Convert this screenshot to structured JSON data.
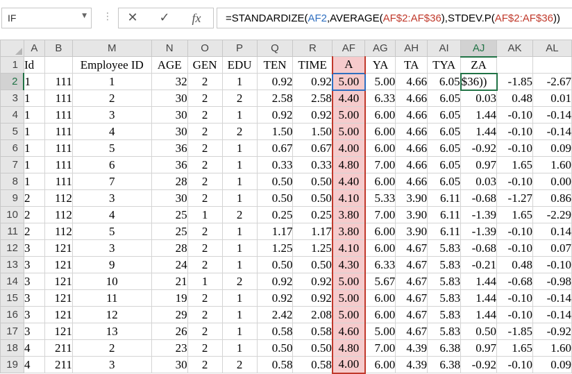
{
  "name_box": {
    "value": "IF"
  },
  "formula_bar": {
    "prefix": "=STANDARDIZE(",
    "arg1": "AF2",
    "mid1": ",AVERAGE(",
    "arg2": "AF$2:AF$36",
    "mid2": "),STDEV.P(",
    "arg3": "AF$2:AF$36",
    "suffix": "))",
    "cancel_icon": "close-icon",
    "enter_icon": "check-icon",
    "fx_label": "fx"
  },
  "columns": [
    "A",
    "B",
    "M",
    "N",
    "O",
    "P",
    "Q",
    "R",
    "AF",
    "AG",
    "AH",
    "AI",
    "AJ",
    "AK",
    "AL"
  ],
  "active_column": "AJ",
  "active_row": "2",
  "header_row": {
    "row_number": "1",
    "cells": [
      "Id",
      "",
      "Employee ID",
      "AGE",
      "GEN",
      "EDU",
      "TEN",
      "TIME",
      "A",
      "YA",
      "TA",
      "TYA",
      "ZA",
      "",
      ""
    ]
  },
  "rows": [
    {
      "n": "2",
      "cells": [
        "1",
        "111",
        "1",
        "32",
        "2",
        "1",
        "0.92",
        "0.92",
        "5.00",
        "5.00",
        "4.66",
        "6.05",
        "$36))",
        "-1.85",
        "-2.67"
      ]
    },
    {
      "n": "3",
      "cells": [
        "1",
        "111",
        "2",
        "30",
        "2",
        "2",
        "2.58",
        "2.58",
        "4.40",
        "6.33",
        "4.66",
        "6.05",
        "0.03",
        "0.48",
        "0.01"
      ]
    },
    {
      "n": "4",
      "cells": [
        "1",
        "111",
        "3",
        "30",
        "2",
        "1",
        "0.92",
        "0.92",
        "5.00",
        "6.00",
        "4.66",
        "6.05",
        "1.44",
        "-0.10",
        "-0.14"
      ]
    },
    {
      "n": "5",
      "cells": [
        "1",
        "111",
        "4",
        "30",
        "2",
        "2",
        "1.50",
        "1.50",
        "5.00",
        "6.00",
        "4.66",
        "6.05",
        "1.44",
        "-0.10",
        "-0.14"
      ]
    },
    {
      "n": "6",
      "cells": [
        "1",
        "111",
        "5",
        "36",
        "2",
        "1",
        "0.67",
        "0.67",
        "4.00",
        "6.00",
        "4.66",
        "6.05",
        "-0.92",
        "-0.10",
        "0.09"
      ]
    },
    {
      "n": "7",
      "cells": [
        "1",
        "111",
        "6",
        "36",
        "2",
        "1",
        "0.33",
        "0.33",
        "4.80",
        "7.00",
        "4.66",
        "6.05",
        "0.97",
        "1.65",
        "1.60"
      ]
    },
    {
      "n": "8",
      "cells": [
        "1",
        "111",
        "7",
        "28",
        "2",
        "1",
        "0.50",
        "0.50",
        "4.40",
        "6.00",
        "4.66",
        "6.05",
        "0.03",
        "-0.10",
        "0.00"
      ]
    },
    {
      "n": "9",
      "cells": [
        "2",
        "112",
        "3",
        "30",
        "2",
        "1",
        "0.50",
        "0.50",
        "4.10",
        "5.33",
        "3.90",
        "6.11",
        "-0.68",
        "-1.27",
        "0.86"
      ]
    },
    {
      "n": "10",
      "cells": [
        "2",
        "112",
        "4",
        "25",
        "1",
        "2",
        "0.25",
        "0.25",
        "3.80",
        "7.00",
        "3.90",
        "6.11",
        "-1.39",
        "1.65",
        "-2.29"
      ]
    },
    {
      "n": "11",
      "cells": [
        "2",
        "112",
        "5",
        "25",
        "2",
        "1",
        "1.17",
        "1.17",
        "3.80",
        "6.00",
        "3.90",
        "6.11",
        "-1.39",
        "-0.10",
        "0.14"
      ]
    },
    {
      "n": "12",
      "cells": [
        "3",
        "121",
        "3",
        "28",
        "2",
        "1",
        "1.25",
        "1.25",
        "4.10",
        "6.00",
        "4.67",
        "5.83",
        "-0.68",
        "-0.10",
        "0.07"
      ]
    },
    {
      "n": "13",
      "cells": [
        "3",
        "121",
        "9",
        "24",
        "2",
        "1",
        "0.50",
        "0.50",
        "4.30",
        "6.33",
        "4.67",
        "5.83",
        "-0.21",
        "0.48",
        "-0.10"
      ]
    },
    {
      "n": "14",
      "cells": [
        "3",
        "121",
        "10",
        "21",
        "1",
        "2",
        "0.92",
        "0.92",
        "5.00",
        "5.67",
        "4.67",
        "5.83",
        "1.44",
        "-0.68",
        "-0.98"
      ]
    },
    {
      "n": "15",
      "cells": [
        "3",
        "121",
        "11",
        "19",
        "2",
        "1",
        "0.92",
        "0.92",
        "5.00",
        "6.00",
        "4.67",
        "5.83",
        "1.44",
        "-0.10",
        "-0.14"
      ]
    },
    {
      "n": "16",
      "cells": [
        "3",
        "121",
        "12",
        "29",
        "2",
        "1",
        "2.42",
        "2.08",
        "5.00",
        "6.00",
        "4.67",
        "5.83",
        "1.44",
        "-0.10",
        "-0.14"
      ]
    },
    {
      "n": "17",
      "cells": [
        "3",
        "121",
        "13",
        "26",
        "2",
        "1",
        "0.58",
        "0.58",
        "4.60",
        "5.00",
        "4.67",
        "5.83",
        "0.50",
        "-1.85",
        "-0.92"
      ]
    },
    {
      "n": "18",
      "cells": [
        "4",
        "211",
        "2",
        "23",
        "2",
        "1",
        "0.50",
        "0.50",
        "4.80",
        "7.00",
        "4.39",
        "6.38",
        "0.97",
        "1.65",
        "1.60"
      ]
    },
    {
      "n": "19",
      "cells": [
        "4",
        "211",
        "3",
        "30",
        "2",
        "2",
        "0.58",
        "0.58",
        "4.00",
        "6.00",
        "4.39",
        "6.38",
        "-0.92",
        "-0.10",
        "0.09"
      ]
    }
  ],
  "colors": {
    "highlight_fill": "#f6cbcc",
    "range_border": "#c0392b",
    "ref_blue": "#2f6fc0",
    "active_green": "#217346"
  }
}
